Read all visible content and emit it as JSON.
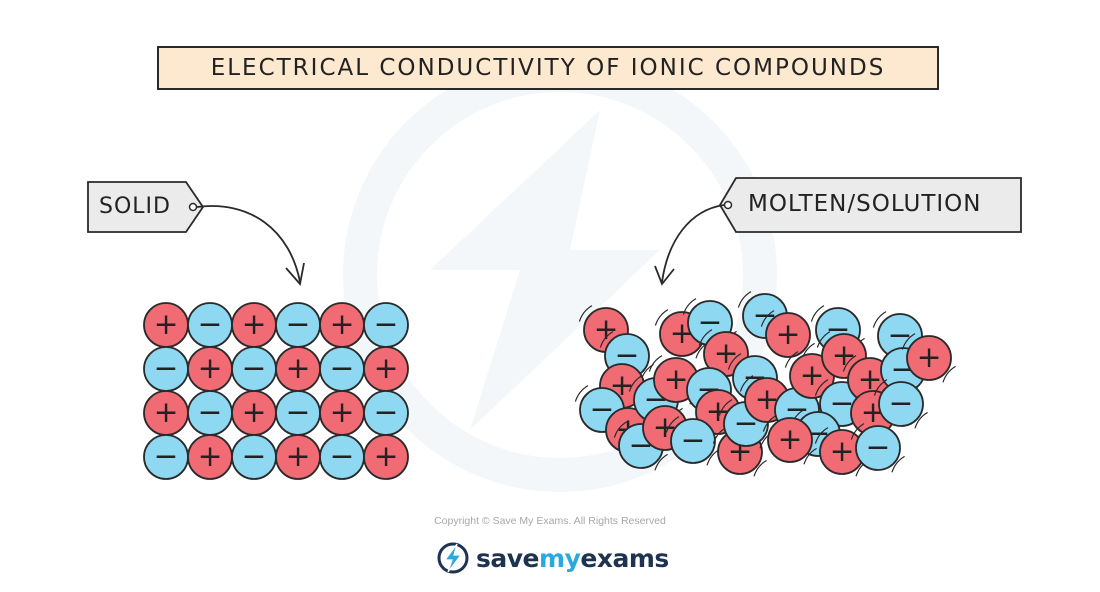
{
  "title": "Electrical conductivity of ionic compounds",
  "labels": {
    "solid": "SOLID",
    "molten_solution": "MOLTEN/SOLUTION"
  },
  "footer": {
    "copyright": "Copyright © Save My Exams. All Rights Reserved",
    "brand_part1": "save",
    "brand_part2": "my",
    "brand_part3": "exams"
  },
  "symbols": {
    "positive": "+",
    "negative": "−"
  },
  "colors": {
    "positive_ion": "#f06b74",
    "negative_ion": "#8fd8f2",
    "outline": "#2a2a2a",
    "title_bg": "#fde9cf",
    "tag_bg": "#ebebeb",
    "brand_dark": "#1e3350",
    "brand_accent": "#2aa9e0"
  },
  "solid_lattice": [
    [
      "+",
      "-",
      "+",
      "-",
      "+",
      "-"
    ],
    [
      "-",
      "+",
      "-",
      "+",
      "-",
      "+"
    ],
    [
      "+",
      "-",
      "+",
      "-",
      "+",
      "-"
    ],
    [
      "-",
      "+",
      "-",
      "+",
      "-",
      "+"
    ]
  ]
}
